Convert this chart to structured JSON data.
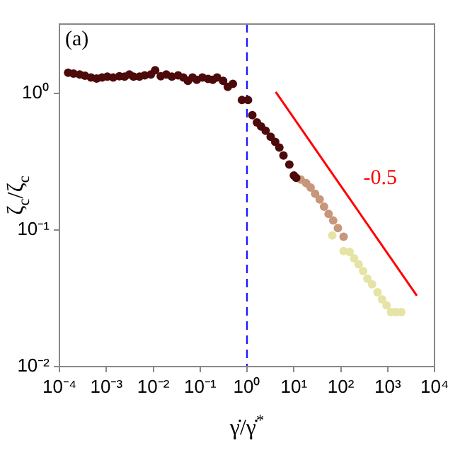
{
  "chart_data": {
    "type": "scatter",
    "xlabel": "γ̇/γ̇$^{*}$",
    "ylabel": "ζ$_{c}$/ζ$_{c}$",
    "log": "xy",
    "grid": false,
    "legend": false,
    "marker": "circle",
    "xlim": [
      0.0001,
      10000
    ],
    "ylim": [
      0.01,
      3.2
    ],
    "xticks": [
      {
        "value": 0.0001,
        "label": "10⁻⁴"
      },
      {
        "value": 0.001,
        "label": "10⁻³"
      },
      {
        "value": 0.01,
        "label": "10⁻²"
      },
      {
        "value": 0.1,
        "label": "10⁻¹"
      },
      {
        "value": 1,
        "label": "10⁰"
      },
      {
        "value": 10,
        "label": "10¹"
      },
      {
        "value": 100,
        "label": "10²"
      },
      {
        "value": 1000,
        "label": "10³"
      },
      {
        "value": 10000,
        "label": "10⁴"
      }
    ],
    "yticks": [
      {
        "value": 0.01,
        "label": "10⁻²"
      },
      {
        "value": 0.1,
        "label": "10⁻¹"
      },
      {
        "value": 1,
        "label": "10⁰"
      }
    ],
    "annotations": [
      "(a)"
    ],
    "ref_lines": [
      {
        "axis": "x",
        "value": 1,
        "color": "#1a1aff",
        "line_style": "dashed"
      }
    ],
    "series": [
      {
        "color": "#4d0a0a",
        "x": [
          0.000153,
          0.0002,
          0.00027,
          0.00035,
          0.00047,
          0.00062,
          0.00081,
          0.00105,
          0.0014,
          0.0019,
          0.00245,
          0.0031,
          0.0038,
          0.0051,
          0.0066,
          0.0089,
          0.011,
          0.0145,
          0.019,
          0.025,
          0.034,
          0.044,
          0.055,
          0.069,
          0.085,
          0.112,
          0.148,
          0.186,
          0.23,
          0.31,
          0.39,
          0.5,
          0.78,
          1.05,
          1.3,
          1.63,
          2,
          2.5,
          3.2,
          4,
          4.9,
          6,
          8,
          10,
          11.2
        ],
        "values": [
          1.41,
          1.39,
          1.37,
          1.34,
          1.3,
          1.28,
          1.3,
          1.32,
          1.3,
          1.33,
          1.32,
          1.37,
          1.32,
          1.32,
          1.35,
          1.37,
          1.47,
          1.33,
          1.37,
          1.32,
          1.35,
          1.3,
          1.23,
          1.3,
          1.25,
          1.3,
          1.27,
          1.25,
          1.3,
          1.23,
          1.11,
          1.17,
          0.89,
          0.89,
          0.69,
          0.61,
          0.57,
          0.53,
          0.48,
          0.44,
          0.4,
          0.35,
          0.3,
          0.25,
          0.24
        ]
      },
      {
        "color": "#c8967a",
        "x": [
          14,
          18.3,
          22.8,
          28.4,
          35.5,
          44,
          55,
          69,
          87,
          115
        ],
        "values": [
          0.233,
          0.22,
          0.204,
          0.184,
          0.167,
          0.148,
          0.131,
          0.117,
          0.103,
          0.089
        ]
      },
      {
        "color": "#e6e4a4",
        "x": [
          66,
          115,
          155,
          192,
          240,
          300,
          370,
          465,
          610,
          760,
          950,
          1180,
          1480,
          1950
        ],
        "values": [
          0.091,
          0.07,
          0.069,
          0.062,
          0.056,
          0.05,
          0.044,
          0.04,
          0.035,
          0.031,
          0.028,
          0.025,
          0.025,
          0.025
        ]
      },
      {
        "type": "line",
        "name": "-0.5",
        "color": "#ff0000",
        "marker": "none",
        "x": [
          4.1,
          4200
        ],
        "values": [
          1.02,
          0.033
        ]
      }
    ]
  }
}
